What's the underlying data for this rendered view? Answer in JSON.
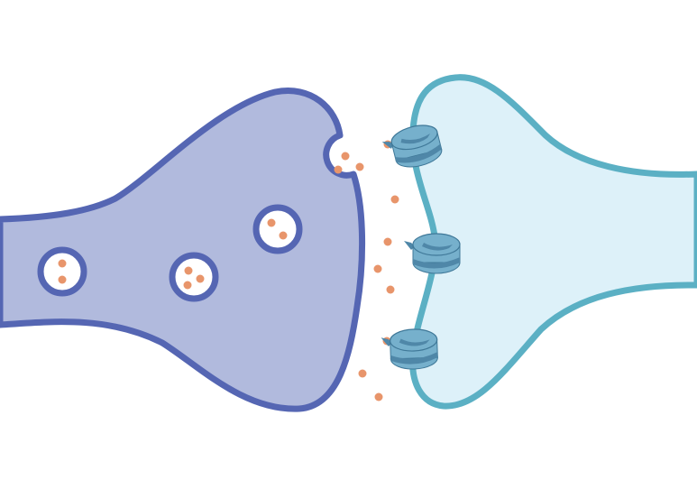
{
  "colors": {
    "background": "#ffffff",
    "presynaptic_fill": "#b1badd",
    "presynaptic_stroke": "#5566b3",
    "postsynaptic_fill": "#ddf1f9",
    "postsynaptic_stroke": "#5bb0c4",
    "vesicle_fill": "#ffffff",
    "vesicle_stroke": "#5566b3",
    "neurotransmitter": "#e8956b",
    "receptor_body": "#76b0cc",
    "receptor_shade": "#4f87a8",
    "receptor_outline": "#3f7898"
  },
  "icons": {
    "presynaptic": "axon-terminal-icon",
    "postsynaptic": "dendrite-icon",
    "vesicle": "synaptic-vesicle-icon",
    "receptor": "receptor-channel-icon",
    "molecule": "neurotransmitter-dot-icon"
  },
  "counts": {
    "vesicles": 3,
    "exocytosis_sites": 1,
    "receptors": 3,
    "cleft_molecules": 9
  }
}
